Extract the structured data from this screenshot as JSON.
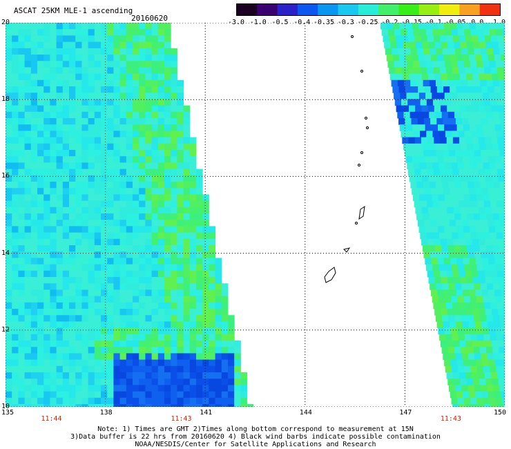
{
  "header": {
    "title": "ASCAT 25KM MLE-1 ascending",
    "date": "20160620"
  },
  "colorbar": {
    "labels": [
      "-3.0",
      "-1.0",
      "-0.5",
      "-0.4",
      "-0.35",
      "-0.3",
      "-0.25",
      "-0.2",
      "-0.15",
      "-0.1",
      "-0.05",
      "0.0",
      "1.0"
    ],
    "colors": [
      "#1a0020",
      "#3a0070",
      "#2a22c8",
      "#0a58f0",
      "#0896f0",
      "#18c8ee",
      "#28eed8",
      "#40f06a",
      "#38ee18",
      "#98ee10",
      "#f0ee10",
      "#f8a020",
      "#f03010"
    ]
  },
  "map": {
    "lon_ticks": [
      "135",
      "138",
      "141",
      "144",
      "147",
      "150"
    ],
    "lat_ticks": [
      "10",
      "12",
      "14",
      "16",
      "18",
      "20"
    ],
    "lon_range": [
      135,
      150
    ],
    "lat_range": [
      10,
      20
    ],
    "times": [
      "11:44",
      "11:43",
      "11:43"
    ]
  },
  "notes": [
    "Note: 1) Times are GMT 2)Times along bottom correspond to measurement at 15N",
    "3)Data buffer is 22 hrs from 20160620 4) Black wind barbs indicate possible contamination",
    "NOAA/NESDIS/Center for Satellite Applications and Research"
  ]
}
